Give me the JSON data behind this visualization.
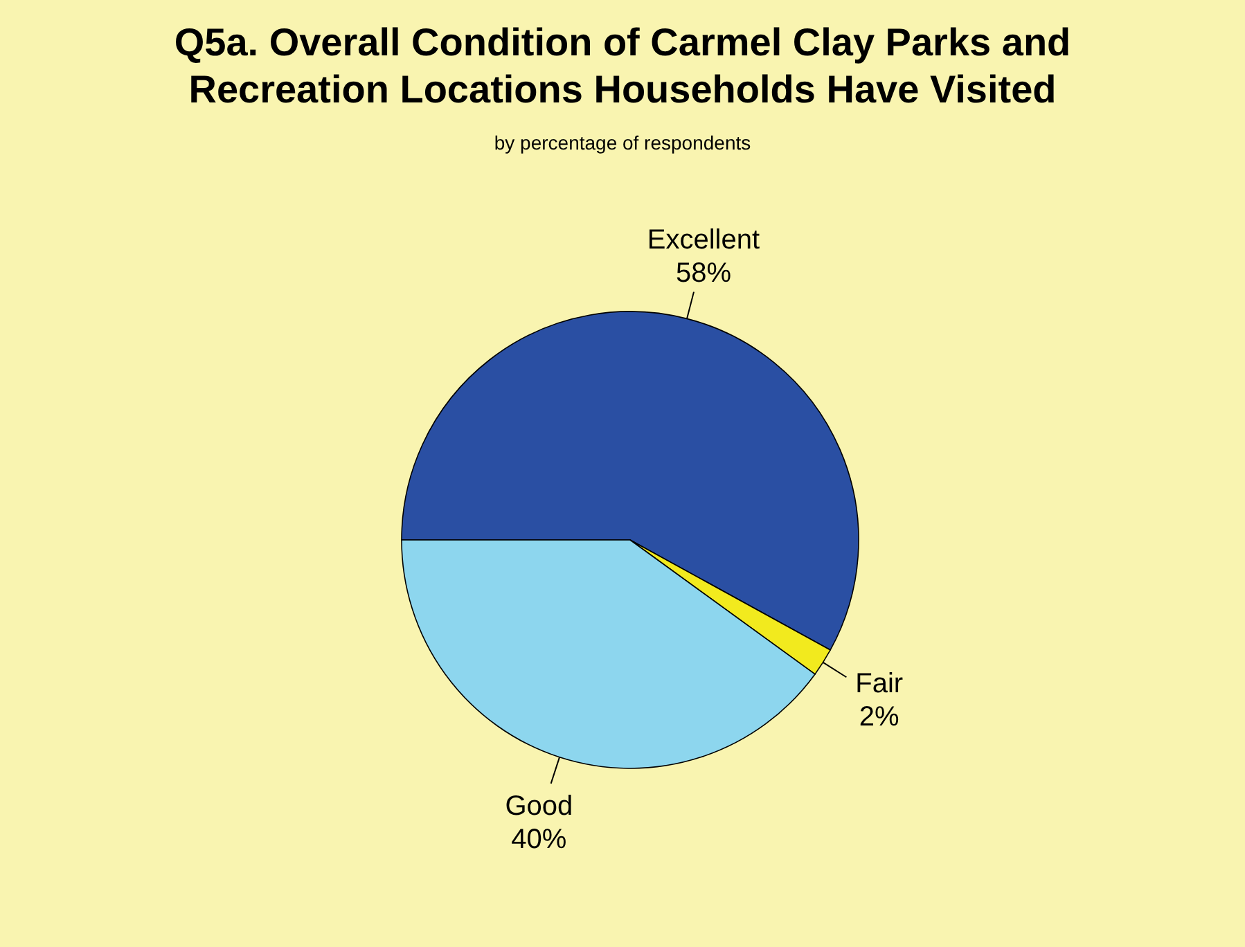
{
  "chart_data": {
    "type": "pie",
    "title": "Q5a. Overall Condition of Carmel Clay Parks and Recreation Locations Households Have Visited",
    "subtitle": "by percentage of respondents",
    "categories": [
      "Excellent",
      "Fair",
      "Good"
    ],
    "values": [
      58,
      2,
      40
    ],
    "colors": [
      "#2a4fa3",
      "#f2ea1e",
      "#8dd6ee"
    ],
    "value_labels": [
      "58%",
      "2%",
      "40%"
    ]
  }
}
